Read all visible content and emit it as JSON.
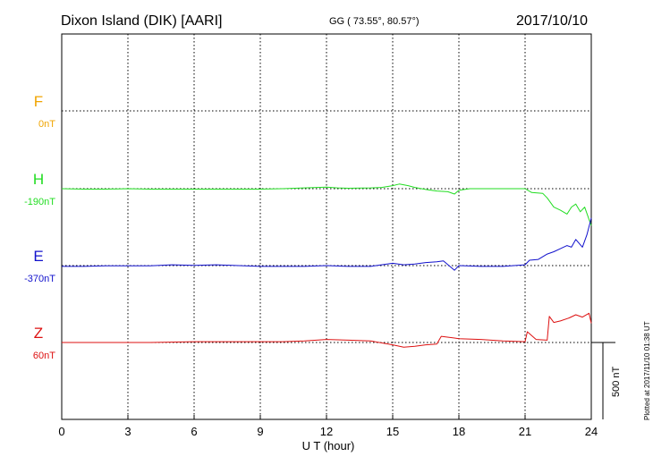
{
  "header": {
    "station": "Dixon Island (DIK)  [AARI]",
    "coords": "GG ( 73.55°,  80.57°)",
    "date": "2017/10/10"
  },
  "footer": {
    "plotted": "Plotted at 2017/11/10 01:38 UT"
  },
  "scale_bar": {
    "label": "500 nT",
    "value_nT": 500
  },
  "colors": {
    "F": "#f0a400",
    "H": "#22dd22",
    "E": "#1111cc",
    "Z": "#dd1111"
  },
  "chart_data": {
    "type": "line",
    "xlabel": "U T (hour)",
    "xlim": [
      0,
      24
    ],
    "x_ticks": [
      "0",
      "3",
      "6",
      "9",
      "12",
      "15",
      "18",
      "21",
      "24"
    ],
    "components": [
      {
        "name": "F",
        "baseline_label": "0nT",
        "baseline_nT": 0,
        "values": []
      },
      {
        "name": "H",
        "baseline_label": "-190nT",
        "baseline_nT": -190,
        "x": [
          0,
          1,
          2,
          3,
          4,
          5,
          6,
          7,
          8,
          9,
          10,
          11,
          12,
          12.5,
          13,
          14,
          14.5,
          15,
          15.3,
          15.7,
          16,
          16.5,
          17,
          17.5,
          17.8,
          18,
          18.5,
          19,
          20,
          21,
          21.3,
          21.8,
          22,
          22.3,
          22.6,
          22.9,
          23.1,
          23.3,
          23.5,
          23.7,
          23.9,
          24
        ],
        "values": [
          0,
          -3,
          -3,
          0,
          -3,
          -3,
          -3,
          -3,
          -3,
          -3,
          0,
          5,
          10,
          5,
          3,
          5,
          8,
          20,
          30,
          20,
          8,
          -5,
          -15,
          -20,
          -35,
          -10,
          0,
          0,
          0,
          0,
          -25,
          -30,
          -60,
          -120,
          -140,
          -165,
          -120,
          -100,
          -150,
          -120,
          -200,
          -240
        ]
      },
      {
        "name": "E",
        "baseline_label": "-370nT",
        "baseline_nT": -370,
        "x": [
          0,
          1,
          2,
          3,
          4,
          5,
          6,
          7,
          8,
          9,
          10,
          11,
          12,
          13,
          14,
          15,
          15.5,
          16,
          16.5,
          17,
          17.3,
          17.8,
          18,
          19,
          20,
          21,
          21.2,
          21.6,
          22,
          22.3,
          22.6,
          22.9,
          23.1,
          23.3,
          23.6,
          23.8,
          24
        ],
        "values": [
          -5,
          -5,
          -2,
          -2,
          -2,
          5,
          2,
          5,
          0,
          -5,
          -5,
          -5,
          0,
          -5,
          -5,
          15,
          5,
          10,
          20,
          25,
          30,
          -30,
          0,
          -5,
          -5,
          5,
          35,
          40,
          75,
          90,
          110,
          130,
          120,
          170,
          120,
          200,
          310
        ]
      },
      {
        "name": "Z",
        "baseline_label": "60nT",
        "baseline_nT": 60,
        "x": [
          0,
          2,
          4,
          6,
          8,
          10,
          11,
          12,
          13,
          14,
          15,
          15.5,
          16,
          16.5,
          17,
          17.2,
          18,
          19,
          20,
          21,
          21.1,
          21.5,
          22,
          22.1,
          22.3,
          22.6,
          23,
          23.3,
          23.6,
          23.9,
          24
        ],
        "values": [
          0,
          0,
          0,
          5,
          5,
          5,
          10,
          20,
          15,
          10,
          -15,
          -30,
          -25,
          -15,
          -10,
          40,
          25,
          20,
          10,
          5,
          70,
          20,
          15,
          170,
          130,
          140,
          160,
          180,
          165,
          190,
          125
        ]
      }
    ]
  }
}
